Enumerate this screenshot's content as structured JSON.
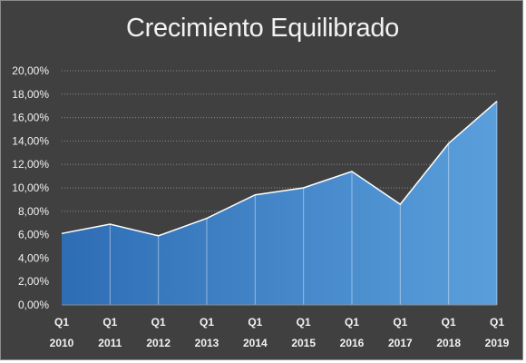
{
  "chart_data": {
    "type": "area",
    "title": "Crecimiento Equilibrado",
    "xlabel": "",
    "ylabel": "",
    "categories": [
      [
        "Q1",
        "2010"
      ],
      [
        "Q1",
        "2011"
      ],
      [
        "Q1",
        "2012"
      ],
      [
        "Q1",
        "2013"
      ],
      [
        "Q1",
        "2014"
      ],
      [
        "Q1",
        "2015"
      ],
      [
        "Q1",
        "2016"
      ],
      [
        "Q1",
        "2017"
      ],
      [
        "Q1",
        "2018"
      ],
      [
        "Q1",
        "2019"
      ]
    ],
    "series": [
      {
        "values": [
          6.1,
          6.9,
          5.9,
          7.4,
          9.4,
          10.0,
          11.4,
          8.6,
          13.8,
          17.4
        ]
      }
    ],
    "ylim": [
      0,
      20
    ],
    "yticks": [
      "0,00%",
      "2,00%",
      "4,00%",
      "6,00%",
      "8,00%",
      "10,00%",
      "12,00%",
      "14,00%",
      "16,00%",
      "18,00%",
      "20,00%"
    ],
    "grid": true,
    "legend": "none",
    "colors": {
      "background": "#404040",
      "area_left": "#2e6db4",
      "area_right": "#5a9fdc",
      "outline": "#ffffff",
      "grid": "#8c8c8c",
      "text": "#f2f2f2"
    }
  }
}
